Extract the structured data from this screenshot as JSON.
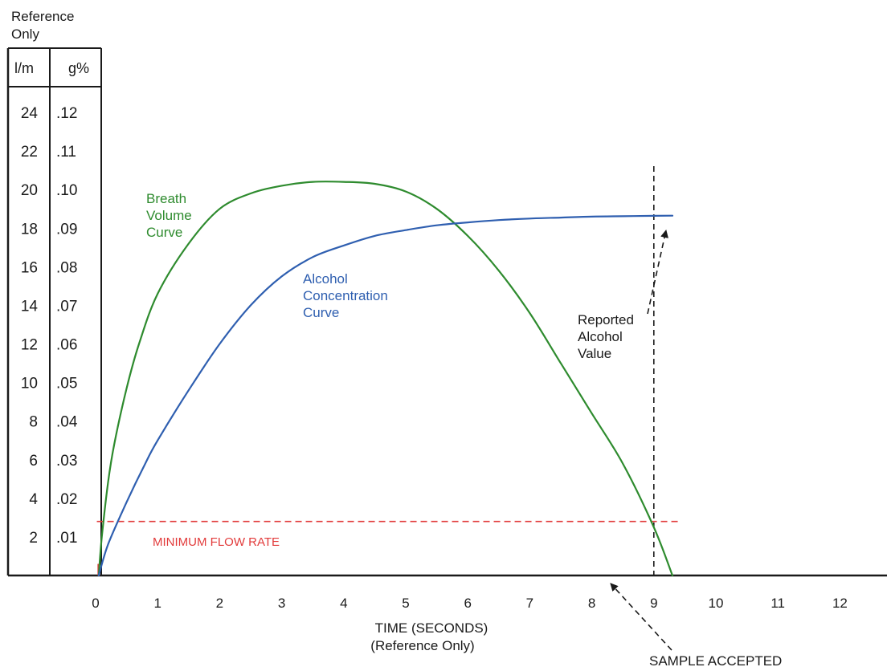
{
  "chart_data": {
    "type": "line",
    "reference_note": [
      "Reference",
      "Only"
    ],
    "left_axis_header": "l/m",
    "right_axis_header": "g%",
    "left_ticks": [
      "24",
      "22",
      "20",
      "18",
      "16",
      "14",
      "12",
      "10",
      "8",
      "6",
      "4",
      "2"
    ],
    "right_ticks": [
      ".12",
      ".11",
      ".10",
      ".09",
      ".08",
      ".07",
      ".06",
      ".05",
      ".04",
      ".03",
      ".02",
      ".01"
    ],
    "ylim": [
      0,
      25
    ],
    "xlim": [
      0,
      12.5
    ],
    "x_ticks": [
      "0",
      "1",
      "2",
      "3",
      "4",
      "5",
      "6",
      "7",
      "8",
      "9",
      "10",
      "11",
      "12"
    ],
    "xlabel": "TIME  (SECONDS)",
    "xlabel_sub": "(Reference Only)",
    "series": [
      {
        "name": "Breath Volume Curve",
        "label_lines": [
          "Breath",
          "Volume",
          "Curve"
        ],
        "color": "#2e8b2e",
        "x": [
          0.05,
          0.1,
          0.2,
          0.3,
          0.5,
          0.7,
          1.0,
          1.5,
          2.0,
          2.5,
          3.0,
          3.5,
          4.0,
          4.5,
          5.0,
          5.5,
          6.0,
          6.5,
          7.0,
          7.5,
          8.0,
          8.5,
          9.0,
          9.3
        ],
        "y": [
          0,
          2,
          4.8,
          6.8,
          9.7,
          12,
          14.6,
          17.2,
          19.0,
          19.8,
          20.2,
          20.4,
          20.4,
          20.3,
          19.9,
          19.0,
          17.6,
          15.8,
          13.6,
          11.0,
          8.4,
          5.8,
          2.5,
          0
        ]
      },
      {
        "name": "Alcohol Concentration Curve",
        "label_lines": [
          "Alcohol",
          "Concentration",
          "Curve"
        ],
        "color": "#2f5fb0",
        "x": [
          0.05,
          0.2,
          0.5,
          0.8,
          1.0,
          1.5,
          2.0,
          2.5,
          3.0,
          3.5,
          4.0,
          4.5,
          5.0,
          5.5,
          6.0,
          6.5,
          7.0,
          7.5,
          8.0,
          8.5,
          9.0,
          9.3
        ],
        "y": [
          0,
          1.6,
          3.8,
          5.8,
          7.0,
          9.6,
          12.0,
          14.0,
          15.5,
          16.5,
          17.1,
          17.6,
          17.9,
          18.15,
          18.3,
          18.42,
          18.5,
          18.55,
          18.6,
          18.62,
          18.64,
          18.65
        ]
      }
    ],
    "min_flow_rate": {
      "y": 2.8,
      "label": "MINIMUM FLOW RATE",
      "color": "#e23b3b"
    },
    "sample_accepted_x": 9.0,
    "annotations": {
      "reported_value": [
        "Reported",
        "Alcohol",
        "Value"
      ],
      "sample_accepted": "SAMPLE ACCEPTED"
    },
    "grid": false
  }
}
